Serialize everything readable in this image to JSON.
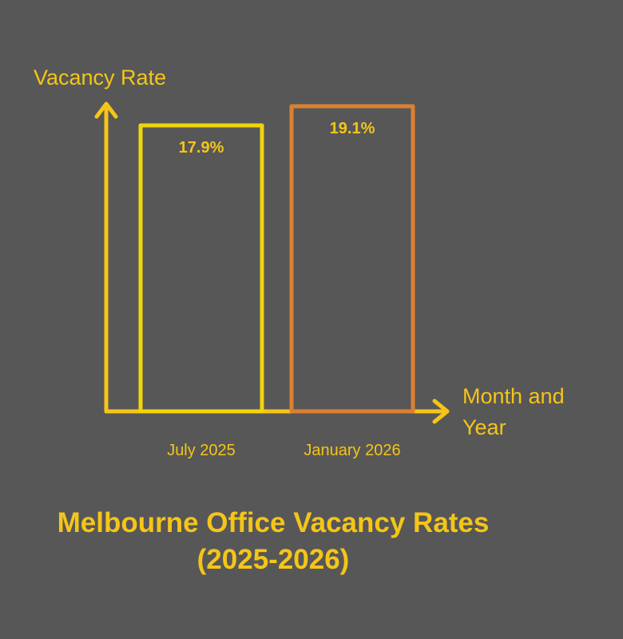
{
  "chart_data": {
    "type": "bar",
    "title_line1": "Melbourne Office Vacancy Rates",
    "title_line2": "(2025-2026)",
    "xlabel_line1": "Month and",
    "xlabel_line2": "Year",
    "ylabel": "Vacancy Rate",
    "categories": [
      "July 2025",
      "January 2026"
    ],
    "values": [
      17.9,
      19.1
    ],
    "data_labels": [
      "17.9%",
      "19.1%"
    ],
    "bar_colors": [
      "#f2d40a",
      "#dc8030"
    ],
    "axis_color": "#f5c518",
    "text_color": "#f5c518",
    "background": "#575757",
    "grid": false,
    "legend": "none"
  }
}
